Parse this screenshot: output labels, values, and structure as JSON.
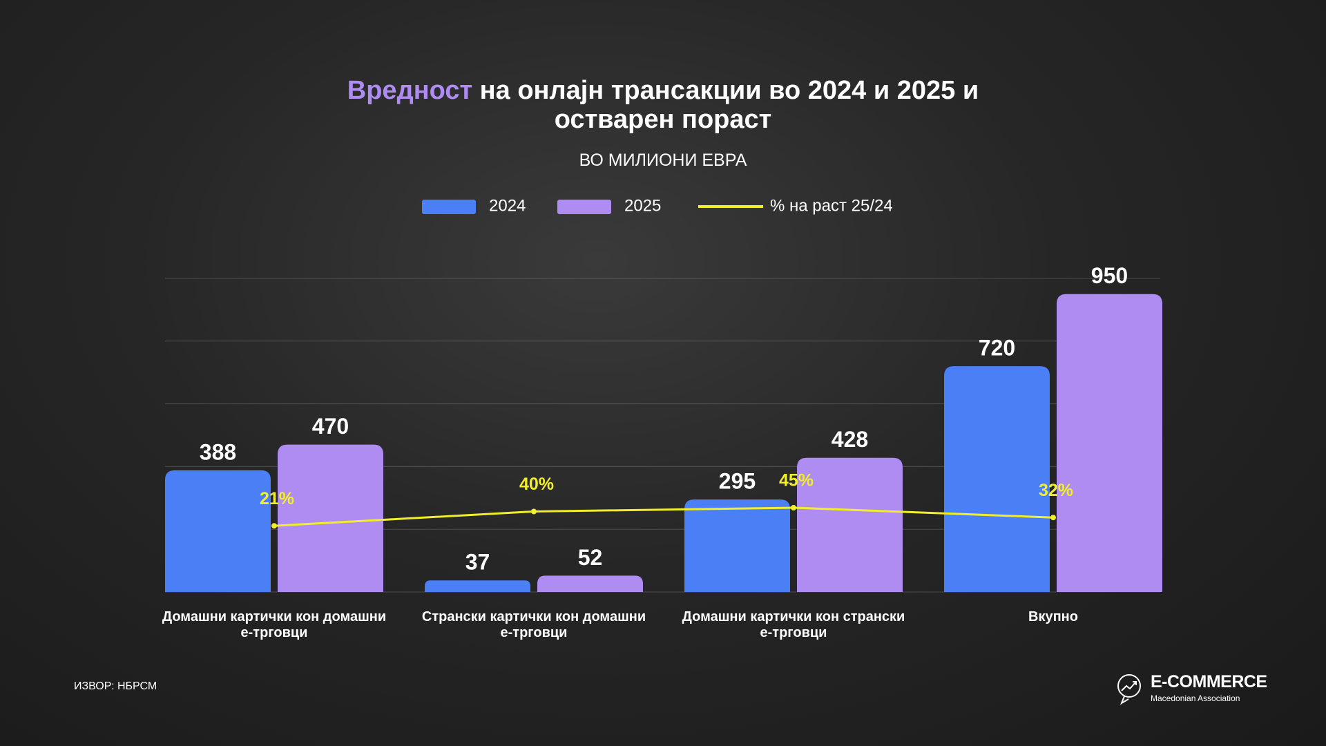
{
  "chart_data": {
    "type": "bar",
    "title_highlight": "Вредност",
    "title": "на онлајн трансакции во 2024 и 2025 и остварен пораст",
    "subtitle": "ВО МИЛИОНИ ЕВРА",
    "categories": [
      "Домашни картички кон домашни е-трговци",
      "Странски картички кон домашни е-трговци",
      "Домашни картички кон странски е-трговци",
      "Вкупно"
    ],
    "series": [
      {
        "name": "2024",
        "color": "#4a7ff5",
        "values": [
          388,
          37,
          295,
          720
        ]
      },
      {
        "name": "2025",
        "color": "#ae8cf2",
        "values": [
          470,
          52,
          428,
          950
        ]
      },
      {
        "name": "% на раст 25/24",
        "type": "line",
        "axis": "y2",
        "color": "#f2ef2a",
        "values": [
          21,
          40,
          45,
          32
        ],
        "value_labels": [
          "21%",
          "40%",
          "45%",
          "32%"
        ]
      }
    ],
    "ylim": [
      0,
      1000
    ],
    "yticks": [
      0,
      200,
      400,
      600,
      800,
      1000
    ],
    "grid": true,
    "y2lim": [
      -67,
      350
    ],
    "source": "ИЗВОР: НБРСМ",
    "logo": {
      "name": "E-COMMERCE",
      "tagline": "Macedonian Association"
    }
  }
}
